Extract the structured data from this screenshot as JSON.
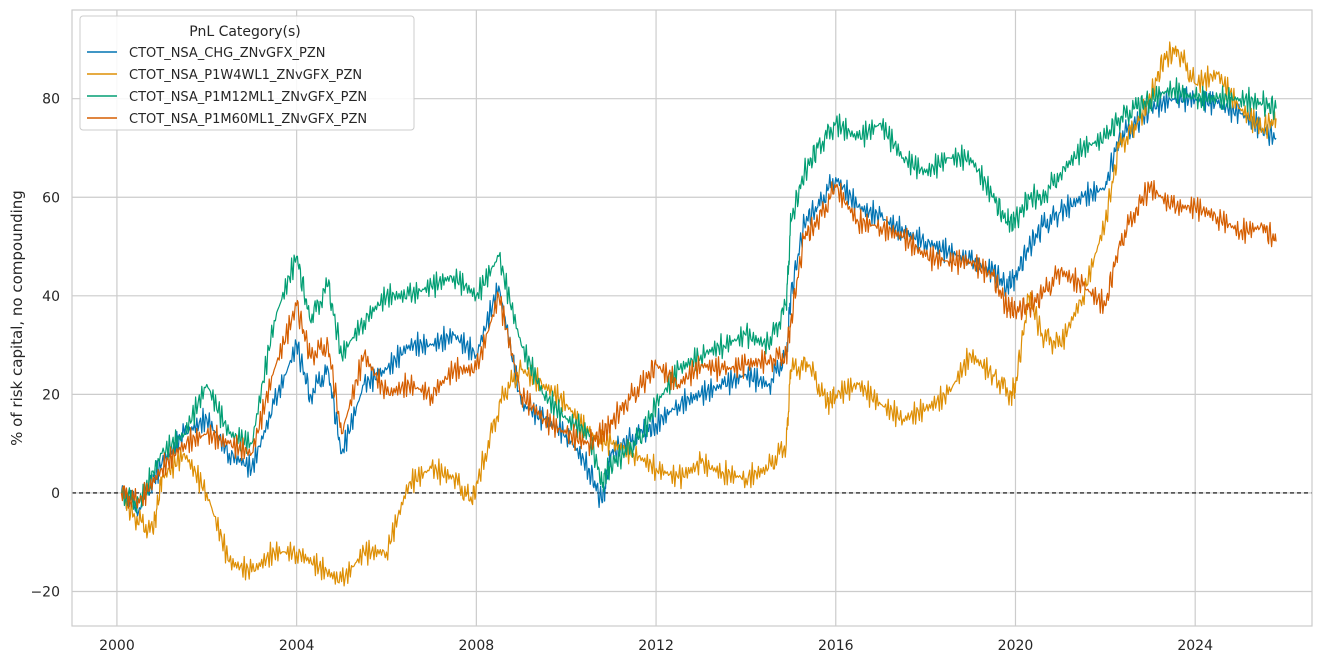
{
  "chart_data": {
    "type": "line",
    "title": "",
    "xlabel": "",
    "ylabel": "% of risk capital, no compounding",
    "xlim": [
      1999.0,
      2026.6
    ],
    "ylim": [
      -27,
      98
    ],
    "x_ticks": [
      2000,
      2004,
      2008,
      2012,
      2016,
      2020,
      2024
    ],
    "y_ticks": [
      -20,
      0,
      20,
      40,
      60,
      80
    ],
    "y_tick_labels": [
      "−20",
      "0",
      "20",
      "40",
      "60",
      "80"
    ],
    "grid": true,
    "zero_line": 0,
    "legend": {
      "title": "PnL Category(s)",
      "position": "top-left"
    },
    "series": [
      {
        "name": "CTOT_NSA_CHG_ZNvGFX_PZN",
        "color": "#0173b2",
        "x": [
          2000.1,
          2000.5,
          2001.0,
          2001.5,
          2002.0,
          2002.5,
          2003.0,
          2003.5,
          2004.0,
          2004.3,
          2004.7,
          2005.0,
          2005.5,
          2006.0,
          2006.5,
          2007.0,
          2007.5,
          2008.0,
          2008.5,
          2009.0,
          2009.5,
          2010.0,
          2010.5,
          2010.8,
          2011.0,
          2011.3,
          2011.7,
          2012.0,
          2012.5,
          2013.0,
          2013.5,
          2014.0,
          2014.5,
          2014.9,
          2015.0,
          2015.3,
          2015.6,
          2016.0,
          2016.5,
          2017.0,
          2017.5,
          2018.0,
          2018.5,
          2019.0,
          2019.5,
          2019.8,
          2020.0,
          2020.3,
          2020.6,
          2021.0,
          2021.5,
          2022.0,
          2022.3,
          2022.7,
          2023.0,
          2023.5,
          2024.0,
          2024.5,
          2025.0,
          2025.5,
          2025.8
        ],
        "values": [
          0,
          -3,
          6,
          12,
          15,
          8,
          5,
          18,
          30,
          20,
          25,
          8,
          22,
          25,
          30,
          30,
          32,
          28,
          42,
          18,
          15,
          12,
          5,
          -2,
          8,
          10,
          12,
          14,
          18,
          20,
          22,
          24,
          22,
          28,
          40,
          55,
          58,
          64,
          58,
          56,
          53,
          51,
          49,
          47,
          45,
          42,
          44,
          50,
          54,
          57,
          60,
          62,
          72,
          75,
          78,
          80,
          80,
          79,
          77,
          74,
          72
        ]
      },
      {
        "name": "CTOT_NSA_P1W4WL1_ZNvGFX_PZN",
        "color": "#de8f05",
        "x": [
          2000.1,
          2000.4,
          2000.8,
          2001.0,
          2001.5,
          2002.0,
          2002.5,
          2003.0,
          2003.5,
          2004.0,
          2004.5,
          2005.0,
          2005.5,
          2006.0,
          2006.5,
          2007.0,
          2007.5,
          2007.9,
          2008.2,
          2008.6,
          2009.0,
          2009.5,
          2010.0,
          2010.5,
          2011.0,
          2011.5,
          2012.0,
          2012.5,
          2013.0,
          2013.5,
          2014.0,
          2014.5,
          2014.9,
          2015.0,
          2015.4,
          2015.8,
          2016.0,
          2016.5,
          2017.0,
          2017.5,
          2018.0,
          2018.5,
          2019.0,
          2019.5,
          2019.9,
          2020.0,
          2020.3,
          2020.6,
          2021.0,
          2021.5,
          2022.0,
          2022.3,
          2022.7,
          2023.0,
          2023.3,
          2023.6,
          2024.0,
          2024.5,
          2025.0,
          2025.5,
          2025.8
        ],
        "values": [
          0,
          -5,
          -8,
          3,
          8,
          0,
          -14,
          -16,
          -12,
          -12,
          -15,
          -18,
          -12,
          -12,
          2,
          5,
          3,
          -2,
          8,
          20,
          25,
          22,
          18,
          12,
          10,
          8,
          5,
          3,
          6,
          4,
          3,
          5,
          10,
          25,
          26,
          18,
          20,
          22,
          18,
          15,
          17,
          20,
          28,
          24,
          20,
          22,
          40,
          32,
          30,
          40,
          55,
          70,
          75,
          80,
          88,
          90,
          83,
          85,
          78,
          74,
          76
        ]
      },
      {
        "name": "CTOT_NSA_P1M12ML1_ZNvGFX_PZN",
        "color": "#029e73",
        "x": [
          2000.1,
          2000.5,
          2001.0,
          2001.5,
          2002.0,
          2002.5,
          2003.0,
          2003.5,
          2004.0,
          2004.3,
          2004.7,
          2005.0,
          2005.5,
          2006.0,
          2006.5,
          2007.0,
          2007.5,
          2008.0,
          2008.5,
          2009.0,
          2009.5,
          2010.0,
          2010.5,
          2010.8,
          2011.0,
          2011.3,
          2011.7,
          2012.0,
          2012.5,
          2013.0,
          2013.5,
          2014.0,
          2014.5,
          2014.9,
          2015.0,
          2015.3,
          2015.6,
          2016.0,
          2016.5,
          2017.0,
          2017.5,
          2018.0,
          2018.5,
          2019.0,
          2019.5,
          2019.8,
          2020.0,
          2020.3,
          2020.6,
          2021.0,
          2021.5,
          2022.0,
          2022.3,
          2022.7,
          2023.0,
          2023.5,
          2024.0,
          2024.5,
          2025.0,
          2025.5,
          2025.8
        ],
        "values": [
          0,
          -2,
          8,
          12,
          22,
          12,
          10,
          35,
          48,
          35,
          42,
          28,
          35,
          40,
          40,
          42,
          44,
          40,
          48,
          30,
          20,
          15,
          12,
          2,
          6,
          8,
          12,
          18,
          25,
          28,
          30,
          32,
          30,
          38,
          55,
          65,
          70,
          75,
          72,
          75,
          68,
          65,
          68,
          68,
          60,
          55,
          55,
          60,
          60,
          65,
          70,
          72,
          76,
          78,
          80,
          82,
          80,
          80,
          80,
          79,
          78
        ]
      },
      {
        "name": "CTOT_NSA_P1M60ML1_ZNvGFX_PZN",
        "color": "#d55e00",
        "x": [
          2000.1,
          2000.5,
          2001.0,
          2001.5,
          2002.0,
          2002.5,
          2003.0,
          2003.5,
          2004.0,
          2004.3,
          2004.7,
          2005.0,
          2005.5,
          2006.0,
          2006.5,
          2007.0,
          2007.5,
          2008.0,
          2008.5,
          2009.0,
          2009.5,
          2010.0,
          2010.5,
          2010.8,
          2011.0,
          2011.3,
          2011.7,
          2012.0,
          2012.5,
          2013.0,
          2013.5,
          2014.0,
          2014.5,
          2014.9,
          2015.0,
          2015.3,
          2015.6,
          2016.0,
          2016.5,
          2017.0,
          2017.5,
          2018.0,
          2018.5,
          2019.0,
          2019.5,
          2019.8,
          2020.0,
          2020.3,
          2020.6,
          2021.0,
          2021.5,
          2022.0,
          2022.3,
          2022.7,
          2023.0,
          2023.5,
          2024.0,
          2024.5,
          2025.0,
          2025.5,
          2025.8
        ],
        "values": [
          0,
          -2,
          5,
          10,
          12,
          10,
          8,
          25,
          38,
          28,
          30,
          12,
          28,
          20,
          22,
          20,
          25,
          25,
          40,
          20,
          15,
          12,
          10,
          12,
          14,
          18,
          22,
          26,
          22,
          26,
          25,
          26,
          27,
          28,
          35,
          52,
          55,
          62,
          55,
          54,
          52,
          48,
          47,
          47,
          44,
          38,
          37,
          38,
          40,
          45,
          42,
          38,
          50,
          58,
          62,
          58,
          58,
          56,
          53,
          54,
          51
        ]
      }
    ]
  }
}
